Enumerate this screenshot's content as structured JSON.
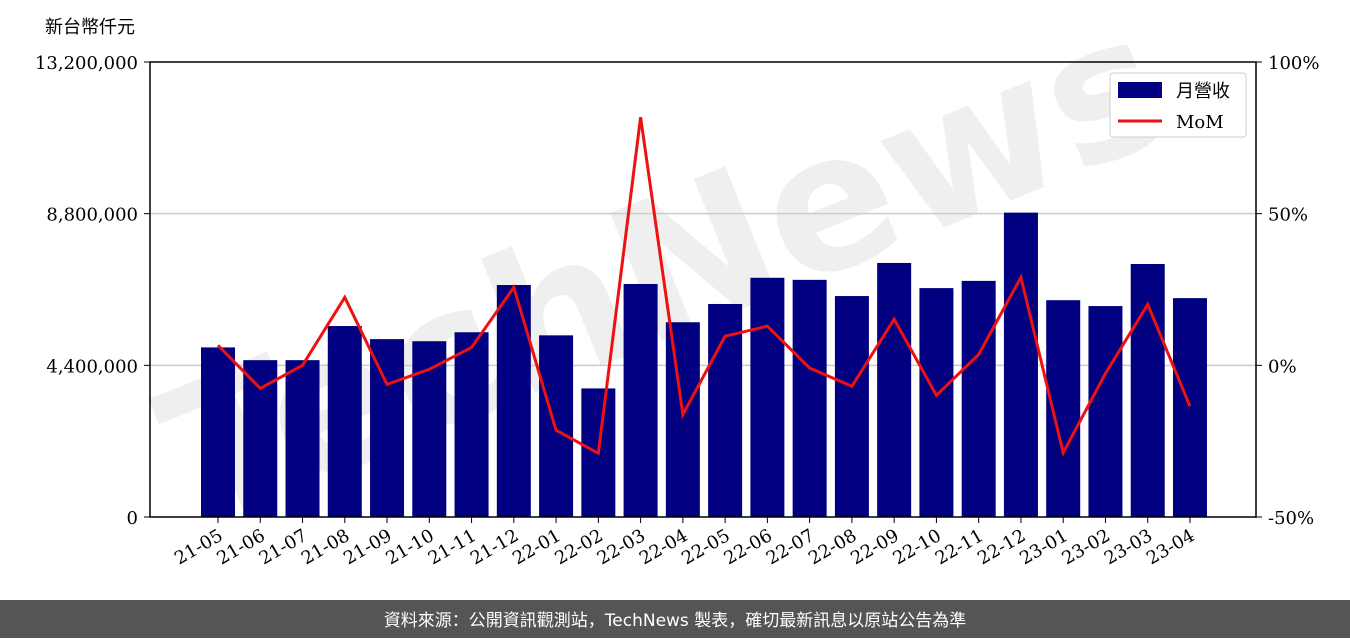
{
  "chart_data": {
    "type": "bar_line",
    "y_label": "新台幣仟元",
    "watermark": "TechNews",
    "footer": "資料來源：公開資訊觀測站，TechNews 製表，確切最新訊息以原站公告為準",
    "categories": [
      "21-05",
      "21-06",
      "21-07",
      "21-08",
      "21-09",
      "21-10",
      "21-11",
      "21-12",
      "22-01",
      "22-02",
      "22-03",
      "22-04",
      "22-05",
      "22-06",
      "22-07",
      "22-08",
      "22-09",
      "22-10",
      "22-11",
      "22-12",
      "23-01",
      "23-02",
      "23-03",
      "23-04"
    ],
    "series": [
      {
        "name": "月營收",
        "type": "bar",
        "color": "#000080",
        "values": [
          4920000,
          4550000,
          4550000,
          5540000,
          5160000,
          5100000,
          5360000,
          6730000,
          5270000,
          3730000,
          6760000,
          5650000,
          6180000,
          6940000,
          6880000,
          6410000,
          7370000,
          6640000,
          6850000,
          8830000,
          6290000,
          6120000,
          7340000,
          6350000
        ]
      },
      {
        "name": "MoM",
        "type": "line",
        "axis": "y2",
        "color": "#ee1111",
        "values": [
          6.6,
          -7.6,
          0,
          22.4,
          -6.3,
          -1.3,
          5.9,
          25.7,
          -21.4,
          -29,
          81.8,
          -16.2,
          9.6,
          12.9,
          -0.9,
          -6.9,
          15.2,
          -9.9,
          3.6,
          29,
          -28.8,
          -2.7,
          20.1,
          -13.5
        ]
      }
    ],
    "ylim": [
      0,
      13200000
    ],
    "yticks": [
      0,
      {
        "value": 4400000,
        "label": "4,400,000"
      },
      {
        "value": 8800000,
        "label": "8,800,000"
      },
      {
        "value": 13200000,
        "label": "13,200,000"
      }
    ],
    "y2lim": [
      -50,
      100
    ],
    "y2ticks": [
      {
        "value": -50,
        "label": "-50%"
      },
      {
        "value": 0,
        "label": "0%"
      },
      {
        "value": 50,
        "label": "50%"
      },
      {
        "value": 100,
        "label": "100%"
      }
    ],
    "grid": true,
    "legend": "upper right"
  }
}
